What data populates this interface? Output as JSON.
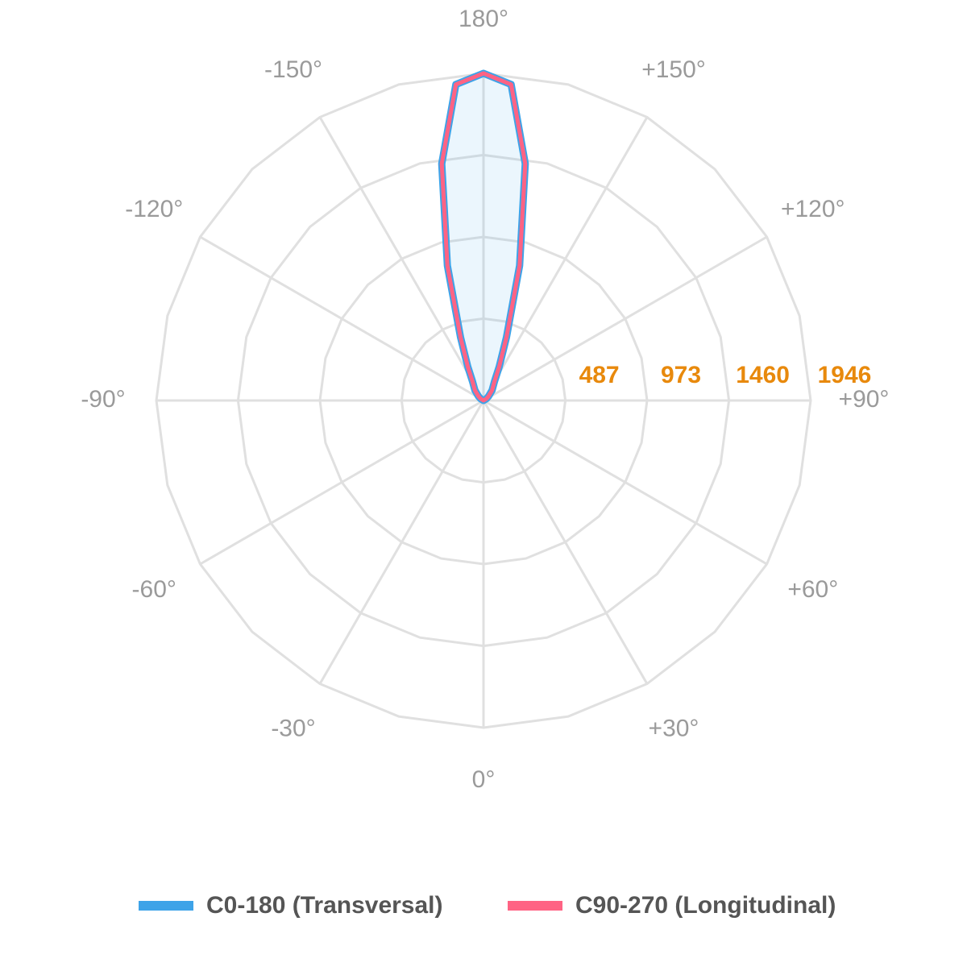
{
  "chart_data": {
    "type": "polar",
    "x": [
      90,
      120,
      130,
      140,
      150,
      155,
      160,
      165,
      170,
      175,
      180,
      185,
      190,
      195,
      200,
      205,
      210,
      220,
      230,
      240,
      270
    ],
    "series": [
      {
        "name": "C0-180 (Transversal)",
        "color": "#3ea3e8",
        "values": [
          0,
          20,
          40,
          80,
          130,
          220,
          400,
          830,
          1430,
          1887,
          1946,
          1887,
          1430,
          830,
          400,
          220,
          130,
          80,
          40,
          20,
          0
        ]
      },
      {
        "name": "C90-270 (Longitudinal)",
        "color": "#ff6384",
        "values": [
          0,
          20,
          40,
          80,
          130,
          220,
          400,
          830,
          1430,
          1887,
          1946,
          1887,
          1430,
          830,
          400,
          220,
          130,
          80,
          40,
          20,
          0
        ]
      }
    ],
    "rlim": [
      0,
      1946
    ],
    "rticks": [
      487,
      973,
      1460,
      1946
    ],
    "angle_ticks": [
      {
        "value": 0,
        "label": "0°"
      },
      {
        "value": 30,
        "label": "+30°"
      },
      {
        "value": 60,
        "label": "+60°"
      },
      {
        "value": 90,
        "label": "+90°"
      },
      {
        "value": 120,
        "label": "+120°"
      },
      {
        "value": 150,
        "label": "+150°"
      },
      {
        "value": 180,
        "label": "180°"
      },
      {
        "value": -150,
        "label": "-150°"
      },
      {
        "value": -120,
        "label": "-120°"
      },
      {
        "value": -90,
        "label": "-90°"
      },
      {
        "value": -60,
        "label": "-60°"
      },
      {
        "value": -30,
        "label": "-30°"
      }
    ],
    "grid": true
  }
}
